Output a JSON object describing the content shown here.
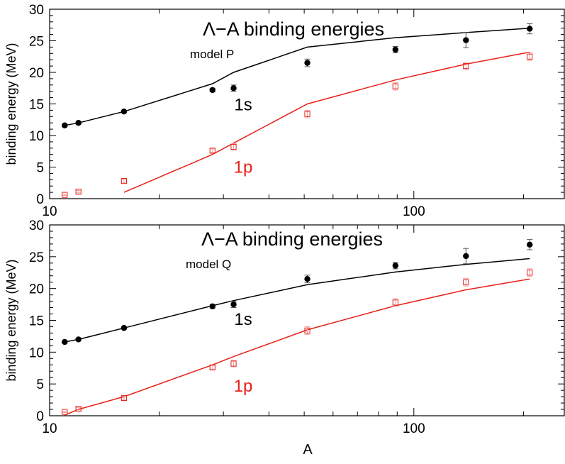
{
  "xlabel_common": "A",
  "chart_data": [
    {
      "type": "scatter",
      "title": "Λ−A binding energies",
      "subtitle": "model P",
      "xlabel": "",
      "ylabel": "binding energy (MeV)",
      "xscale": "log",
      "xlim": [
        10,
        260
      ],
      "ylim": [
        0,
        30
      ],
      "xticks": [
        10,
        100
      ],
      "yticks": [
        0,
        5,
        10,
        15,
        20,
        25,
        30
      ],
      "grid": false,
      "series": [
        {
          "name": "1s",
          "color": "#000000",
          "kind": "data",
          "marker": "filled-circle",
          "x": [
            11,
            12,
            16,
            28,
            32,
            51,
            89,
            139,
            208
          ],
          "y": [
            11.6,
            12.0,
            13.8,
            17.2,
            17.5,
            21.5,
            23.6,
            25.1,
            26.9
          ],
          "err": [
            0.2,
            0.2,
            0.2,
            0.3,
            0.5,
            0.6,
            0.5,
            1.2,
            0.8
          ]
        },
        {
          "name": "1p",
          "color": "#e8201a",
          "kind": "data",
          "marker": "open-square",
          "x": [
            11,
            12,
            16,
            28,
            32,
            51,
            89,
            139,
            208
          ],
          "y": [
            0.6,
            1.1,
            2.8,
            7.6,
            8.2,
            13.4,
            17.8,
            21.0,
            22.5
          ],
          "err": [
            0.1,
            0.2,
            0.3,
            0.3,
            0.5,
            0.6,
            0.6,
            0.6,
            0.6
          ]
        },
        {
          "name": "",
          "color": "#000000",
          "kind": "line",
          "x": [
            11,
            12,
            16,
            28,
            32,
            51,
            89,
            139,
            208
          ],
          "y": [
            11.6,
            12.0,
            13.8,
            18.2,
            20.0,
            24.0,
            25.5,
            26.3,
            27.0
          ]
        },
        {
          "name": "",
          "color": "#e8201a",
          "kind": "line",
          "x": [
            16,
            28,
            32,
            51,
            89,
            139,
            208
          ],
          "y": [
            1.0,
            7.0,
            8.8,
            15.0,
            18.8,
            21.3,
            23.2
          ]
        }
      ],
      "annotations": [
        {
          "text": "1s",
          "x": 34,
          "y": 14.0,
          "color": "#000000"
        },
        {
          "text": "1p",
          "x": 34,
          "y": 4.1,
          "color": "#e8201a"
        }
      ]
    },
    {
      "type": "scatter",
      "title": "Λ−A binding energies",
      "subtitle": "model Q",
      "xlabel": "A",
      "ylabel": "binding energy (MeV)",
      "xscale": "log",
      "xlim": [
        10,
        260
      ],
      "ylim": [
        0,
        30
      ],
      "xticks": [
        10,
        100
      ],
      "yticks": [
        0,
        5,
        10,
        15,
        20,
        25,
        30
      ],
      "grid": false,
      "series": [
        {
          "name": "1s",
          "color": "#000000",
          "kind": "data",
          "marker": "filled-circle",
          "x": [
            11,
            12,
            16,
            28,
            32,
            51,
            89,
            139,
            208
          ],
          "y": [
            11.6,
            12.0,
            13.8,
            17.2,
            17.5,
            21.5,
            23.6,
            25.1,
            26.9
          ],
          "err": [
            0.2,
            0.2,
            0.2,
            0.3,
            0.5,
            0.6,
            0.5,
            1.2,
            0.8
          ]
        },
        {
          "name": "1p",
          "color": "#e8201a",
          "kind": "data",
          "marker": "open-square",
          "x": [
            11,
            12,
            16,
            28,
            32,
            51,
            89,
            139,
            208
          ],
          "y": [
            0.6,
            1.1,
            2.8,
            7.6,
            8.2,
            13.4,
            17.8,
            21.0,
            22.5
          ],
          "err": [
            0.1,
            0.2,
            0.3,
            0.3,
            0.5,
            0.6,
            0.6,
            0.6,
            0.6
          ]
        },
        {
          "name": "",
          "color": "#000000",
          "kind": "line",
          "x": [
            11,
            12,
            16,
            28,
            32,
            51,
            89,
            139,
            208
          ],
          "y": [
            11.6,
            12.0,
            13.8,
            17.3,
            18.1,
            20.6,
            22.6,
            23.8,
            24.7
          ]
        },
        {
          "name": "",
          "color": "#e8201a",
          "kind": "line",
          "x": [
            11,
            12,
            16,
            28,
            32,
            51,
            89,
            139,
            208
          ],
          "y": [
            0.1,
            1.0,
            3.0,
            8.0,
            9.3,
            13.5,
            17.3,
            19.8,
            21.5
          ]
        }
      ],
      "annotations": [
        {
          "text": "1s",
          "x": 34,
          "y": 14.3,
          "color": "#000000"
        },
        {
          "text": "1p",
          "x": 34,
          "y": 3.8,
          "color": "#e8201a"
        }
      ]
    }
  ]
}
